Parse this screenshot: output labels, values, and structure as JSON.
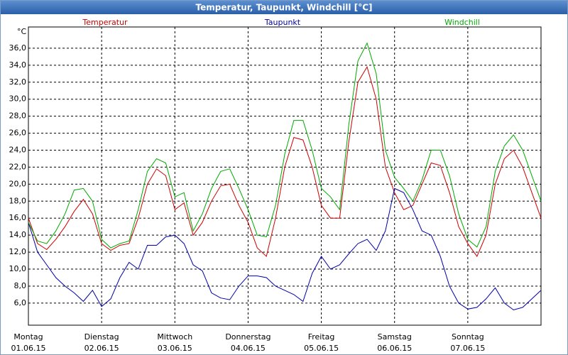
{
  "chart_data": {
    "type": "line",
    "title": "Temperatur, Taupunkt, Windchill [°C]",
    "y_unit": "°C",
    "xlim": [
      0,
      168
    ],
    "ylim": [
      3.4,
      38.5
    ],
    "xticks": [
      {
        "value": 0,
        "label": "Montag",
        "date": "01.06.15"
      },
      {
        "value": 24,
        "label": "Dienstag",
        "date": "02.06.15"
      },
      {
        "value": 48,
        "label": "Mittwoch",
        "date": "03.06.15"
      },
      {
        "value": 72,
        "label": "Donnerstag",
        "date": "04.06.15"
      },
      {
        "value": 96,
        "label": "Freitag",
        "date": "05.06.15"
      },
      {
        "value": 120,
        "label": "Samstag",
        "date": "06.06.15"
      },
      {
        "value": 144,
        "label": "Sonntag",
        "date": "07.06.15"
      }
    ],
    "yticks": [
      {
        "value": 6,
        "label": "6,0"
      },
      {
        "value": 8,
        "label": "8,0"
      },
      {
        "value": 10,
        "label": "10,0"
      },
      {
        "value": 12,
        "label": "12,0"
      },
      {
        "value": 14,
        "label": "14,0"
      },
      {
        "value": 16,
        "label": "16,0"
      },
      {
        "value": 18,
        "label": "18,0"
      },
      {
        "value": 20,
        "label": "20,0"
      },
      {
        "value": 22,
        "label": "22,0"
      },
      {
        "value": 24,
        "label": "24,0"
      },
      {
        "value": 26,
        "label": "26,0"
      },
      {
        "value": 28,
        "label": "28,0"
      },
      {
        "value": 30,
        "label": "30,0"
      },
      {
        "value": 32,
        "label": "32,0"
      },
      {
        "value": 34,
        "label": "34,0"
      },
      {
        "value": 36,
        "label": "36,0"
      }
    ],
    "grid": true,
    "x": [
      0,
      3,
      6,
      9,
      12,
      15,
      18,
      21,
      24,
      27,
      30,
      33,
      36,
      39,
      42,
      45,
      48,
      51,
      54,
      57,
      60,
      63,
      66,
      69,
      72,
      75,
      78,
      81,
      84,
      87,
      90,
      93,
      96,
      99,
      102,
      105,
      108,
      111,
      114,
      117,
      120,
      123,
      126,
      129,
      132,
      135,
      138,
      141,
      144,
      147,
      150,
      153,
      156,
      159,
      162,
      165,
      168
    ],
    "series": [
      {
        "name": "Temperatur",
        "color": "#cc0000",
        "values": [
          16,
          13,
          12.3,
          13.5,
          15,
          16.8,
          18.2,
          16.5,
          13,
          12.2,
          12.8,
          13,
          16,
          20,
          21.8,
          21,
          17,
          17.8,
          14,
          15.5,
          18,
          19.8,
          20,
          17.5,
          15.5,
          12.5,
          11.5,
          16,
          22,
          25.5,
          25.2,
          22,
          17.5,
          16,
          16,
          25,
          32,
          33.8,
          30,
          22,
          19,
          17,
          17.5,
          20,
          22.5,
          22.2,
          19,
          15,
          13,
          11.5,
          14,
          20,
          23,
          24,
          22,
          19,
          16
        ]
      },
      {
        "name": "Taupunkt",
        "color": "#0000aa",
        "values": [
          15.5,
          12,
          10.5,
          9,
          8,
          7.2,
          6.2,
          7.5,
          5.6,
          6.5,
          9,
          10.8,
          10,
          12.8,
          12.8,
          13.8,
          14,
          13,
          10.5,
          9.8,
          7.2,
          6.6,
          6.4,
          8,
          9.2,
          9.2,
          9,
          8,
          7.5,
          7,
          6.2,
          9.5,
          11.5,
          10,
          10.5,
          11.8,
          13,
          13.5,
          12.2,
          14.5,
          19.5,
          19,
          17,
          14.5,
          14,
          11.5,
          8,
          6,
          5.3,
          5.5,
          6.5,
          7.8,
          6,
          5.2,
          5.5,
          6.5,
          7.5
        ]
      },
      {
        "name": "Windchill",
        "color": "#00aa00",
        "values": [
          15.5,
          13.3,
          13,
          14.5,
          16.5,
          19.3,
          19.5,
          18,
          13.5,
          12.5,
          13,
          13.3,
          17,
          21.5,
          23,
          22.5,
          18.5,
          19,
          14.5,
          16.5,
          19.5,
          21.5,
          21.8,
          19.5,
          17,
          14,
          13.8,
          17.5,
          23.5,
          27.5,
          27.5,
          24,
          19.5,
          18.5,
          17,
          27,
          34.5,
          36.6,
          33,
          24,
          20.8,
          19.5,
          18,
          20.5,
          24,
          24,
          21,
          16.5,
          13.5,
          12.6,
          15,
          21.5,
          24.5,
          25.8,
          24,
          21,
          18
        ]
      }
    ]
  }
}
